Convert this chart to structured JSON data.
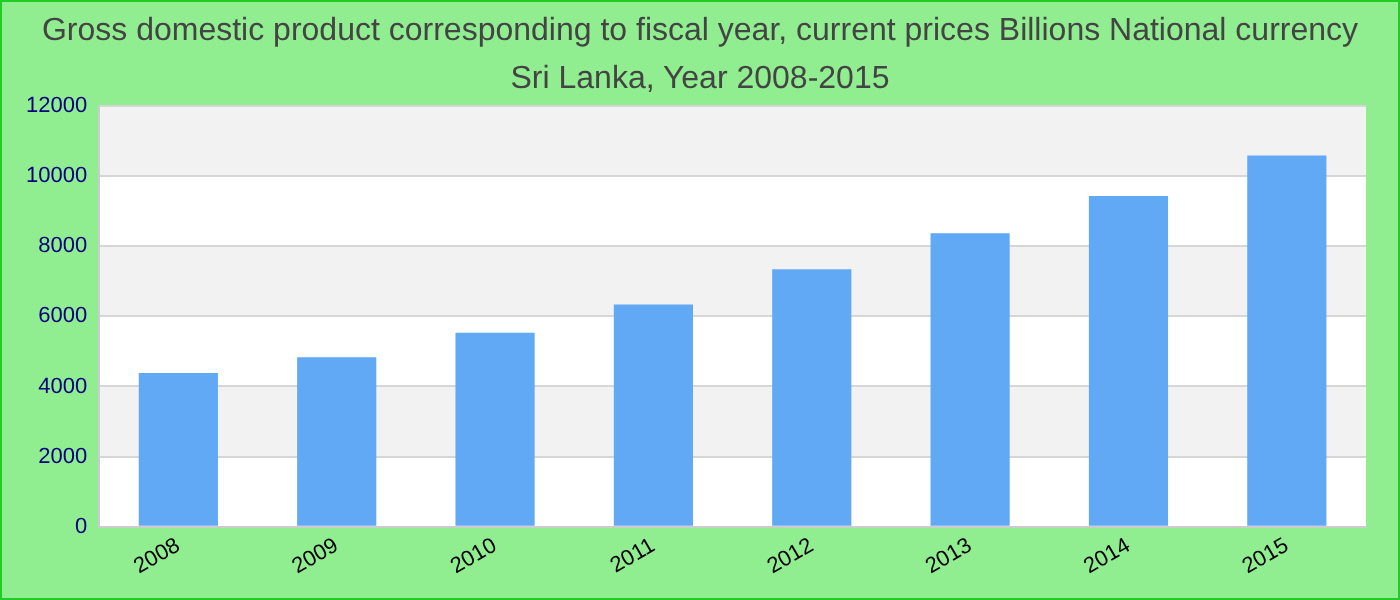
{
  "chart_data": {
    "type": "bar",
    "title": "Gross domestic product corresponding to fiscal year, current prices Billions National currency",
    "subtitle": "Sri Lanka, Year 2008-2015",
    "categories": [
      "2008",
      "2009",
      "2010",
      "2011",
      "2012",
      "2013",
      "2014",
      "2015"
    ],
    "values": [
      4380,
      4830,
      5530,
      6340,
      7340,
      8370,
      9430,
      10590
    ],
    "color": "#61a8f5",
    "ylim": [
      0,
      12000
    ],
    "yticks": [
      0,
      2000,
      4000,
      6000,
      8000,
      10000,
      12000
    ],
    "grid": "y",
    "legend": false
  }
}
